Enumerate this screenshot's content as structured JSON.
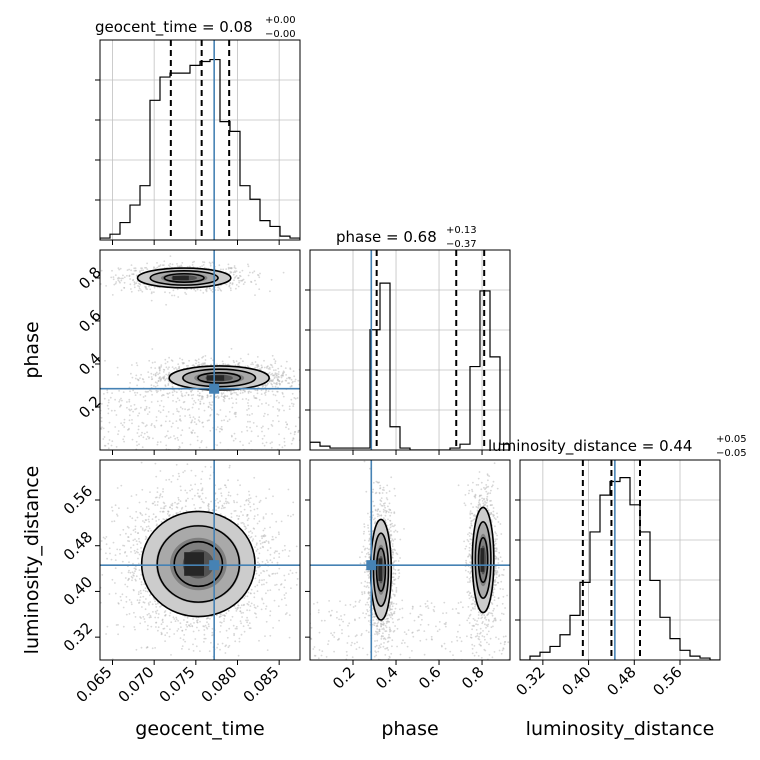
{
  "figure": {
    "titles": [
      {
        "param": "geocent_time",
        "value": "0.08",
        "plus": "+0.00",
        "minus": "−0.00"
      },
      {
        "param": "phase",
        "value": "0.68",
        "plus": "+0.13",
        "minus": "−0.37"
      },
      {
        "param": "luminosity_distance",
        "value": "0.44",
        "plus": "+0.05",
        "minus": "−0.05"
      }
    ],
    "axis_labels": {
      "geocent_time": "geocent_time",
      "phase": "phase",
      "luminosity_distance": "luminosity_distance"
    }
  },
  "chart_data": {
    "type": "corner",
    "parameters": [
      "geocent_time",
      "phase",
      "luminosity_distance"
    ],
    "truths": {
      "geocent_time": 0.0772,
      "phase": 0.285,
      "luminosity_distance": 0.446
    },
    "colors": {
      "truth": "#4682b4",
      "hist": "#000000",
      "grid": "#c0c0c0",
      "samples": "#b8b8b8"
    },
    "ranges": {
      "geocent_time": [
        0.0635,
        0.0875
      ],
      "phase": [
        0.0,
        0.93
      ],
      "luminosity_distance": [
        0.28,
        0.63
      ]
    },
    "ticks": {
      "geocent_time": [
        "0.065",
        "0.070",
        "0.075",
        "0.080",
        "0.085"
      ],
      "phase": [
        "0.2",
        "0.4",
        "0.6",
        "0.8"
      ],
      "luminosity_distance": [
        "0.32",
        "0.40",
        "0.48",
        "0.56"
      ]
    },
    "marginals": [
      {
        "param": "geocent_time",
        "bins": [
          0.0635,
          0.0647,
          0.0659,
          0.0671,
          0.0683,
          0.0695,
          0.0707,
          0.0719,
          0.0731,
          0.0743,
          0.0755,
          0.0767,
          0.0779,
          0.0791,
          0.0803,
          0.0815,
          0.0827,
          0.0839,
          0.0851,
          0.0863,
          0.0875
        ],
        "counts": [
          0.01,
          0.03,
          0.09,
          0.18,
          0.28,
          0.72,
          0.84,
          0.86,
          0.86,
          0.9,
          0.92,
          0.93,
          0.61,
          0.56,
          0.28,
          0.21,
          0.1,
          0.07,
          0.02,
          0.01
        ],
        "quantiles": [
          0.072,
          0.0757,
          0.079
        ],
        "grid": [
          0.065,
          0.07,
          0.075,
          0.08,
          0.085
        ]
      },
      {
        "param": "phase",
        "bins": [
          0.0,
          0.0465,
          0.093,
          0.1395,
          0.186,
          0.2325,
          0.279,
          0.3255,
          0.372,
          0.4185,
          0.465,
          0.5115,
          0.558,
          0.6045,
          0.651,
          0.6975,
          0.744,
          0.7905,
          0.837,
          0.8835,
          0.93
        ],
        "counts": [
          0.04,
          0.02,
          0.01,
          0.01,
          0.01,
          0.01,
          0.62,
          0.86,
          0.12,
          0.01,
          0.0,
          0.0,
          0.0,
          0.0,
          0.01,
          0.03,
          0.43,
          0.82,
          0.48,
          0.03
        ],
        "quantiles": [
          0.31,
          0.68,
          0.81
        ],
        "grid": [
          0.2,
          0.4,
          0.6,
          0.8
        ]
      },
      {
        "param": "luminosity_distance",
        "bins": [
          0.28,
          0.2975,
          0.315,
          0.3325,
          0.35,
          0.3675,
          0.385,
          0.4025,
          0.42,
          0.4375,
          0.455,
          0.4725,
          0.49,
          0.5075,
          0.525,
          0.5425,
          0.56,
          0.5775,
          0.595,
          0.6125,
          0.63
        ],
        "counts": [
          0.0,
          0.02,
          0.04,
          0.07,
          0.13,
          0.23,
          0.4,
          0.66,
          0.85,
          0.92,
          0.94,
          0.8,
          0.66,
          0.41,
          0.22,
          0.11,
          0.05,
          0.02,
          0.01,
          0.0
        ],
        "quantiles": [
          0.39,
          0.44,
          0.49
        ],
        "grid": [
          0.32,
          0.4,
          0.48,
          0.56
        ]
      }
    ],
    "joints": [
      {
        "x": "geocent_time",
        "y": "phase",
        "modes": [
          {
            "cx": 0.0736,
            "cy": 0.8,
            "sx": 0.0028,
            "sy": 0.023,
            "n": 900
          },
          {
            "cx": 0.0778,
            "cy": 0.335,
            "sx": 0.003,
            "sy": 0.028,
            "n": 1500
          }
        ],
        "background": 400
      },
      {
        "x": "geocent_time",
        "y": "luminosity_distance",
        "modes": [
          {
            "cx": 0.0753,
            "cy": 0.448,
            "sx": 0.0034,
            "sy": 0.046,
            "n": 2600
          }
        ],
        "background": 0
      },
      {
        "x": "phase",
        "y": "luminosity_distance",
        "modes": [
          {
            "cx": 0.33,
            "cy": 0.438,
            "sx": 0.024,
            "sy": 0.044,
            "n": 1300
          },
          {
            "cx": 0.805,
            "cy": 0.455,
            "sx": 0.025,
            "sy": 0.046,
            "n": 1200
          }
        ],
        "background": 250
      }
    ]
  }
}
